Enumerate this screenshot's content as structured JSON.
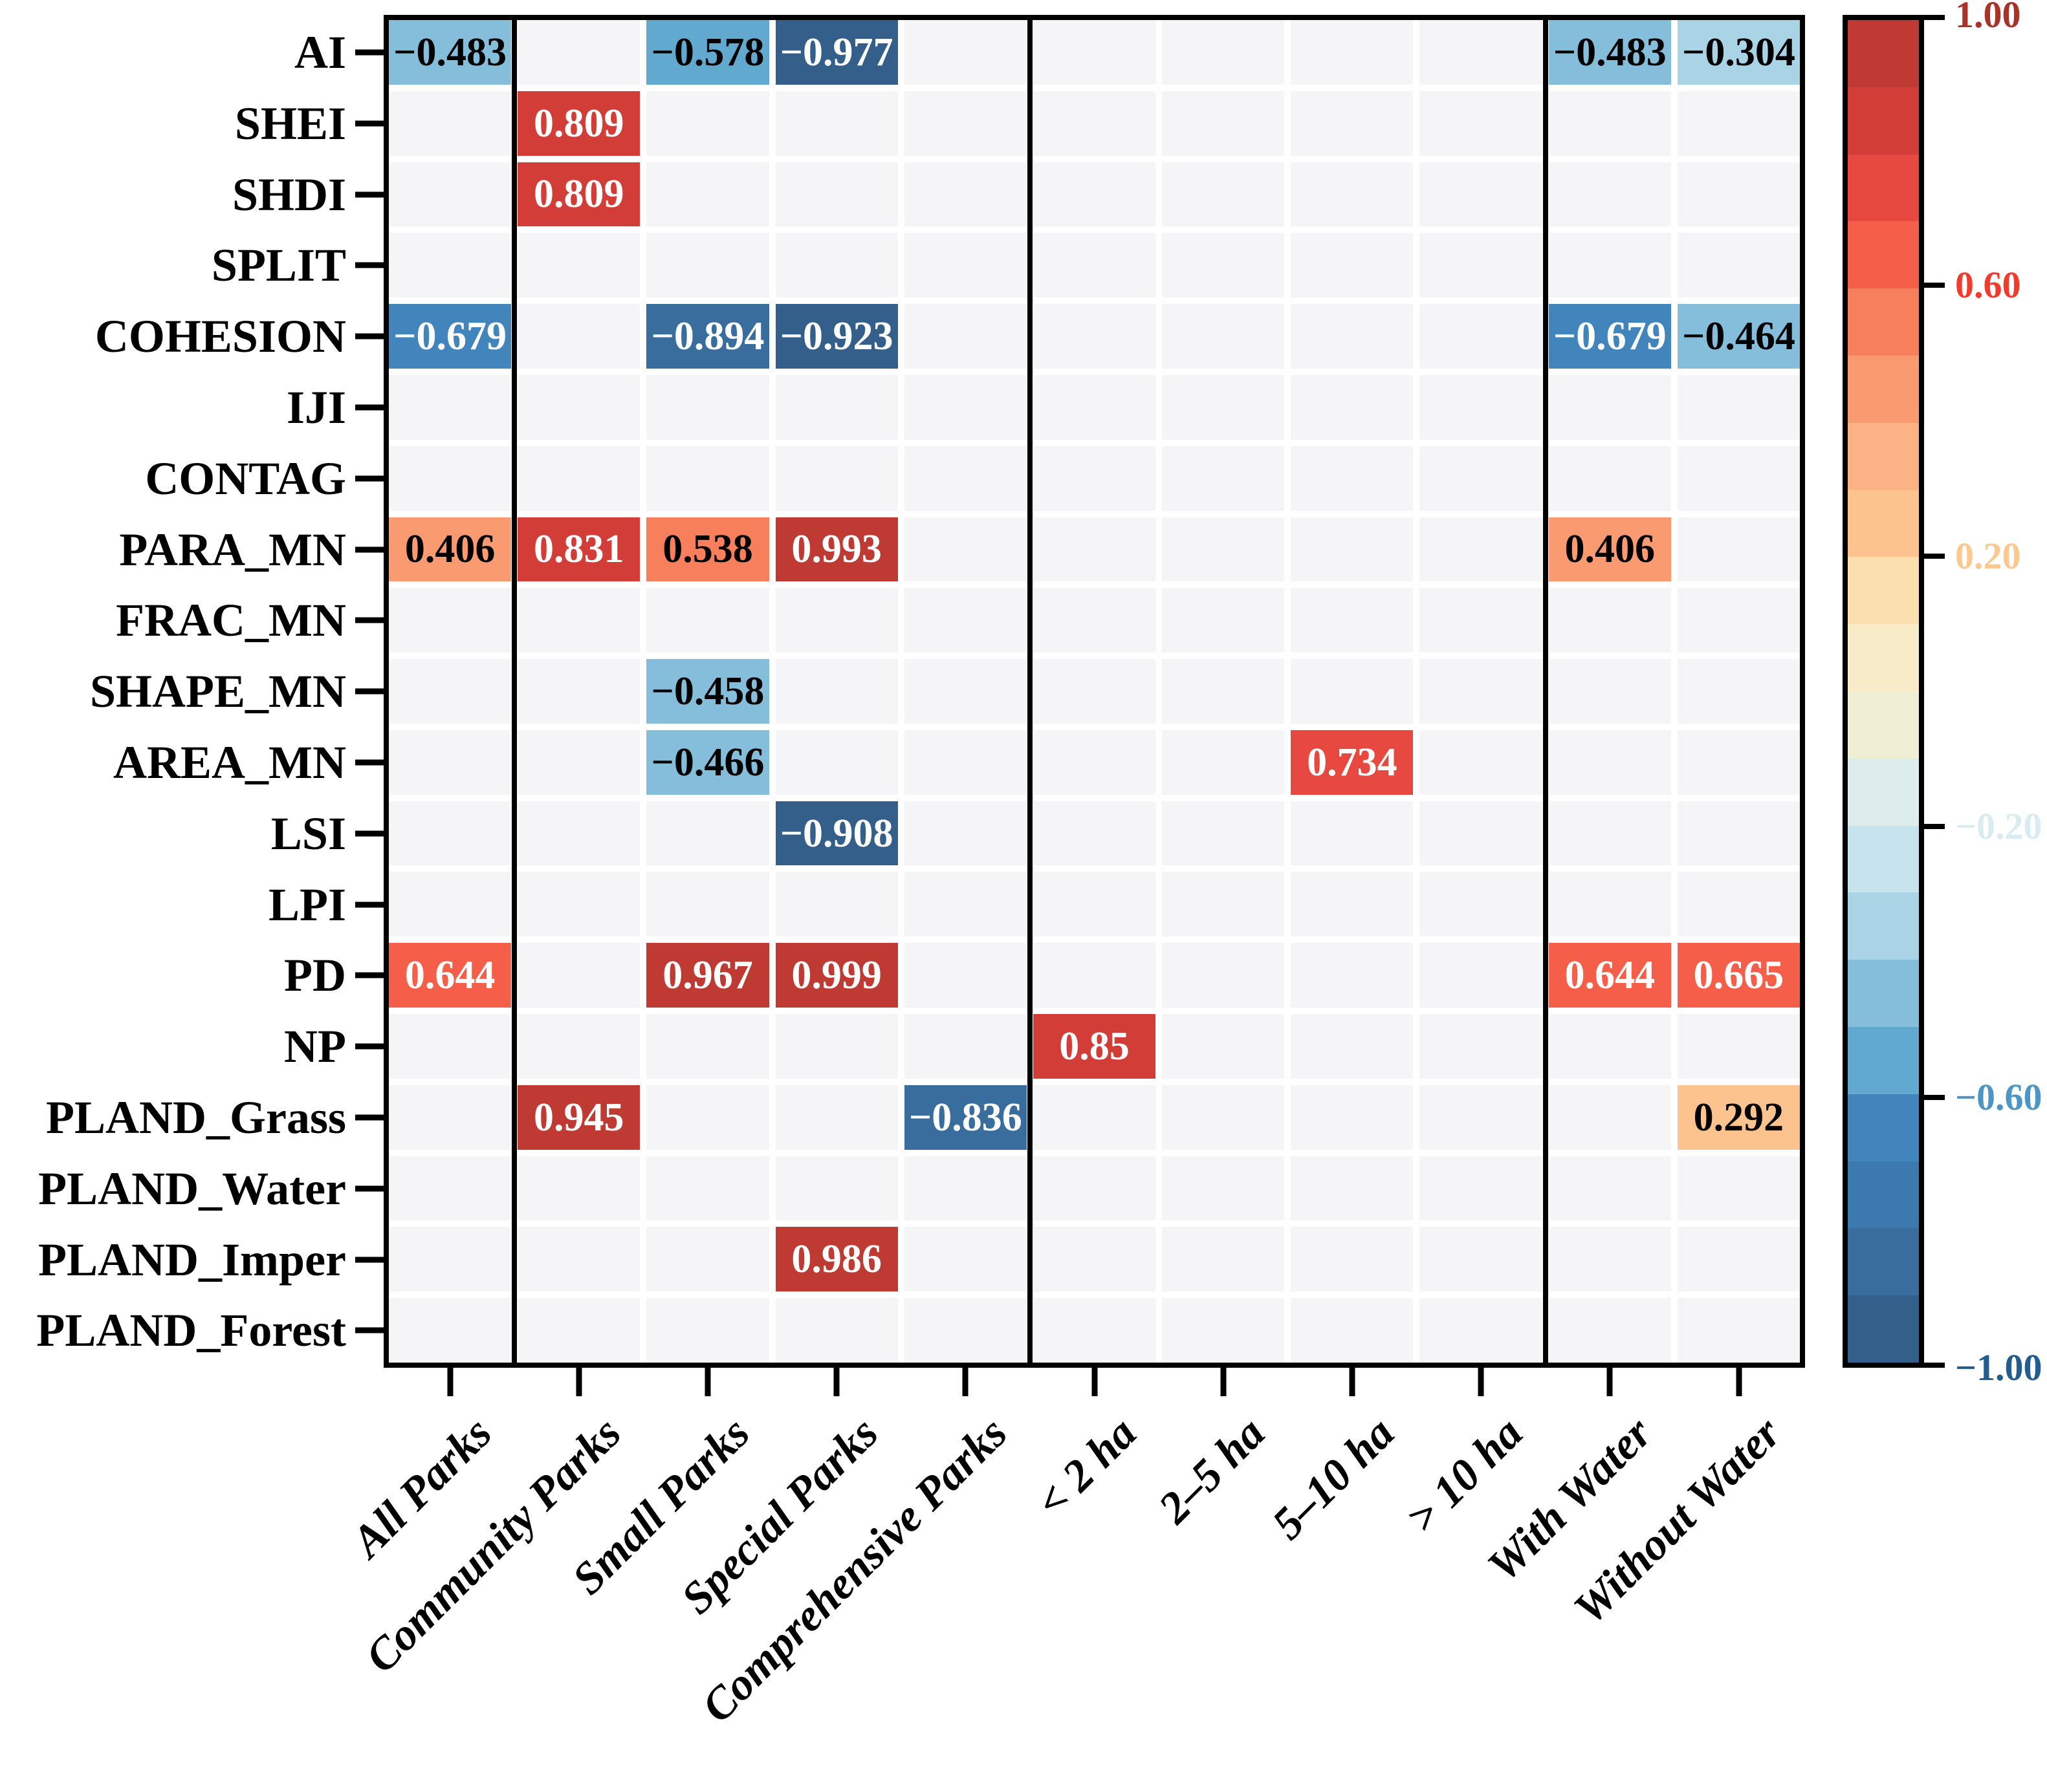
{
  "figure": {
    "background_color": "#ffffff",
    "empty_cell_color": "#f5f4f6",
    "cell_gap_color": "#ffffff",
    "frame_color": "#000000",
    "value_text_white": "#ffffff",
    "value_text_black": "#000000",
    "white_text_threshold": 0.6
  },
  "chart_data": {
    "type": "heatmap",
    "title": "",
    "xlabel": "",
    "ylabel": "",
    "value_range": [
      -1,
      1
    ],
    "rows": [
      "AI",
      "SHEI",
      "SHDI",
      "SPLIT",
      "COHESION",
      "IJI",
      "CONTAG",
      "PARA_MN",
      "FRAC_MN",
      "SHAPE_MN",
      "AREA_MN",
      "LSI",
      "LPI",
      "PD",
      "NP",
      "PLAND_Grass",
      "PLAND_Water",
      "PLAND_Imper",
      "PLAND_Forest"
    ],
    "columns": [
      "All Parks",
      "Community Parks",
      "Small Parks",
      "Special Parks",
      "Comprehensive Parks",
      "< 2 ha",
      "2–5 ha",
      "5–10 ha",
      "> 10 ha",
      "With Water",
      "Without Water"
    ],
    "column_group_separators_after": [
      1,
      5,
      9
    ],
    "cells": [
      {
        "row": "AI",
        "col": "All Parks",
        "value": -0.483,
        "label": "−0.483"
      },
      {
        "row": "AI",
        "col": "Small Parks",
        "value": -0.578,
        "label": "−0.578"
      },
      {
        "row": "AI",
        "col": "Special Parks",
        "value": -0.977,
        "label": "−0.977"
      },
      {
        "row": "AI",
        "col": "With Water",
        "value": -0.483,
        "label": "−0.483"
      },
      {
        "row": "AI",
        "col": "Without Water",
        "value": -0.304,
        "label": "−0.304"
      },
      {
        "row": "SHEI",
        "col": "Community Parks",
        "value": 0.809,
        "label": "0.809"
      },
      {
        "row": "SHDI",
        "col": "Community Parks",
        "value": 0.809,
        "label": "0.809"
      },
      {
        "row": "COHESION",
        "col": "All Parks",
        "value": -0.679,
        "label": "−0.679"
      },
      {
        "row": "COHESION",
        "col": "Small Parks",
        "value": -0.894,
        "label": "−0.894"
      },
      {
        "row": "COHESION",
        "col": "Special Parks",
        "value": -0.923,
        "label": "−0.923"
      },
      {
        "row": "COHESION",
        "col": "With Water",
        "value": -0.679,
        "label": "−0.679"
      },
      {
        "row": "COHESION",
        "col": "Without Water",
        "value": -0.464,
        "label": "−0.464"
      },
      {
        "row": "PARA_MN",
        "col": "All Parks",
        "value": 0.406,
        "label": "0.406"
      },
      {
        "row": "PARA_MN",
        "col": "Community Parks",
        "value": 0.831,
        "label": "0.831"
      },
      {
        "row": "PARA_MN",
        "col": "Small Parks",
        "value": 0.538,
        "label": "0.538"
      },
      {
        "row": "PARA_MN",
        "col": "Special Parks",
        "value": 0.993,
        "label": "0.993"
      },
      {
        "row": "PARA_MN",
        "col": "With Water",
        "value": 0.406,
        "label": "0.406"
      },
      {
        "row": "SHAPE_MN",
        "col": "Small Parks",
        "value": -0.458,
        "label": "−0.458"
      },
      {
        "row": "AREA_MN",
        "col": "Small Parks",
        "value": -0.466,
        "label": "−0.466"
      },
      {
        "row": "AREA_MN",
        "col": "5–10 ha",
        "value": 0.734,
        "label": "0.734"
      },
      {
        "row": "LSI",
        "col": "Special Parks",
        "value": -0.908,
        "label": "−0.908"
      },
      {
        "row": "PD",
        "col": "All Parks",
        "value": 0.644,
        "label": "0.644"
      },
      {
        "row": "PD",
        "col": "Small Parks",
        "value": 0.967,
        "label": "0.967"
      },
      {
        "row": "PD",
        "col": "Special Parks",
        "value": 0.999,
        "label": "0.999"
      },
      {
        "row": "PD",
        "col": "With Water",
        "value": 0.644,
        "label": "0.644"
      },
      {
        "row": "PD",
        "col": "Without Water",
        "value": 0.665,
        "label": "0.665"
      },
      {
        "row": "NP",
        "col": "< 2 ha",
        "value": 0.85,
        "label": "0.85"
      },
      {
        "row": "PLAND_Grass",
        "col": "Community Parks",
        "value": 0.945,
        "label": "0.945"
      },
      {
        "row": "PLAND_Grass",
        "col": "Comprehensive Parks",
        "value": -0.836,
        "label": "−0.836"
      },
      {
        "row": "PLAND_Grass",
        "col": "Without Water",
        "value": 0.292,
        "label": "0.292"
      },
      {
        "row": "PLAND_Imper",
        "col": "Special Parks",
        "value": 0.986,
        "label": "0.986"
      }
    ],
    "palette_neg_to_pos": [
      "#335f8a",
      "#396d9d",
      "#3c79ae",
      "#4285bc",
      "#62a9d0",
      "#85bedb",
      "#a9d4e6",
      "#c6e3ee",
      "#ddedee",
      "#f0eed3",
      "#f7ecc7",
      "#fcdfae",
      "#fcc38f",
      "#fbb285",
      "#fa9a70",
      "#f87f5c",
      "#f55f4a",
      "#e74940",
      "#d33d38",
      "#bf3a33"
    ],
    "colorbar": {
      "position": "right",
      "ticks": [
        {
          "value": 1.0,
          "label": "1.00",
          "color": "#a93229"
        },
        {
          "value": 0.6,
          "label": "0.60",
          "color": "#f03b2d"
        },
        {
          "value": 0.2,
          "label": "0.20",
          "color": "#fbc88f"
        },
        {
          "value": -0.2,
          "label": "−0.20",
          "color": "#d9ecf2"
        },
        {
          "value": -0.6,
          "label": "−0.60",
          "color": "#4d95c5"
        },
        {
          "value": -1.0,
          "label": "−1.00",
          "color": "#235d8f"
        }
      ]
    },
    "legend": null,
    "grid": false
  }
}
